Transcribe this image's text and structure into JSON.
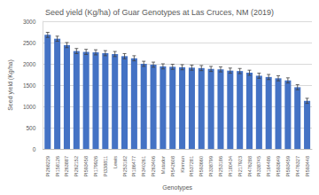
{
  "chart_data": {
    "type": "bar",
    "title": "Seed yield (Kg/ha) of Guar Genotypes at Las Cruces, NM (2019)",
    "x_label": "Genotypes",
    "y_label": "Seed yield (Kg/ha)",
    "categories": [
      "PI268229",
      "PI158126",
      "PI263887",
      "PI262152",
      "PI593458",
      "PI179926",
      "PI338811",
      "Lewis",
      "PI253182",
      "PI186477",
      "PI340261",
      "PI263406",
      "Matador",
      "PI542608",
      "Kinman",
      "PI537281",
      "PI593660",
      "PI338799",
      "PI253186",
      "PI180434",
      "PI217923",
      "PI476288",
      "PI338745",
      "PI164486",
      "PI593649",
      "PI593459",
      "PI476327",
      "PI593448"
    ],
    "values": [
      2680,
      2590,
      2440,
      2300,
      2280,
      2270,
      2250,
      2230,
      2180,
      2130,
      2000,
      1980,
      1940,
      1930,
      1920,
      1910,
      1900,
      1880,
      1870,
      1840,
      1830,
      1790,
      1720,
      1690,
      1660,
      1610,
      1450,
      1130
    ],
    "errors": [
      60,
      60,
      60,
      60,
      60,
      60,
      60,
      60,
      60,
      60,
      60,
      60,
      60,
      60,
      60,
      60,
      60,
      60,
      60,
      60,
      60,
      60,
      60,
      60,
      60,
      60,
      60,
      60
    ],
    "color": "#4472c4",
    "ylim": [
      0,
      3000
    ],
    "yticks": [
      0,
      500,
      1000,
      1500,
      2000,
      2500,
      3000
    ],
    "grid": true
  }
}
